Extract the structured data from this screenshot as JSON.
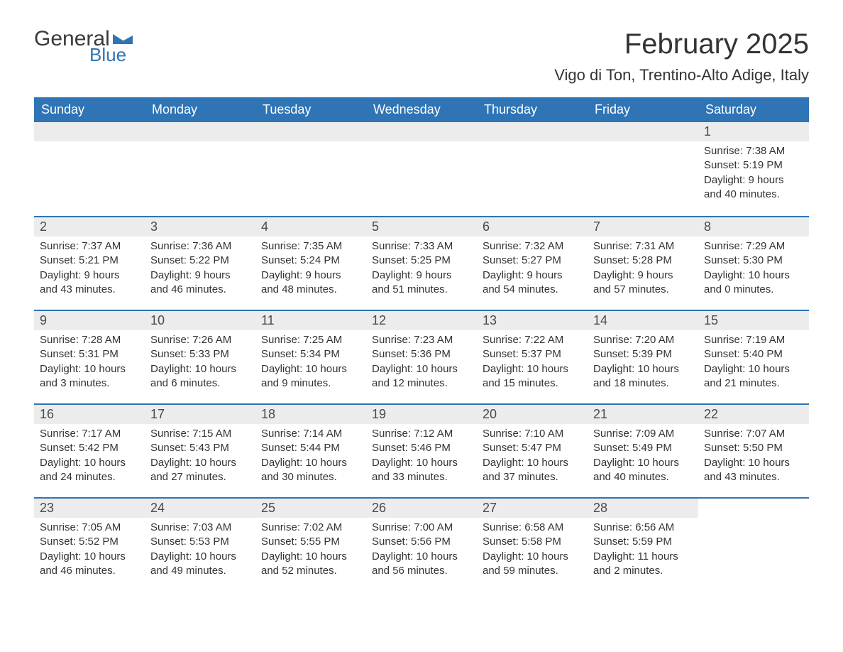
{
  "logo": {
    "general": "General",
    "blue": "Blue",
    "flag_color": "#2f74b5"
  },
  "title": "February 2025",
  "subtitle": "Vigo di Ton, Trentino-Alto Adige, Italy",
  "colors": {
    "header_bg": "#2f74b5",
    "header_text": "#ffffff",
    "daynum_bg": "#ececec",
    "text": "#333333",
    "border": "#2f74b5"
  },
  "dow": [
    "Sunday",
    "Monday",
    "Tuesday",
    "Wednesday",
    "Thursday",
    "Friday",
    "Saturday"
  ],
  "weeks": [
    [
      {
        "empty": true
      },
      {
        "empty": true
      },
      {
        "empty": true
      },
      {
        "empty": true
      },
      {
        "empty": true
      },
      {
        "empty": true
      },
      {
        "n": "1",
        "sunrise": "Sunrise: 7:38 AM",
        "sunset": "Sunset: 5:19 PM",
        "dl1": "Daylight: 9 hours",
        "dl2": "and 40 minutes."
      }
    ],
    [
      {
        "n": "2",
        "sunrise": "Sunrise: 7:37 AM",
        "sunset": "Sunset: 5:21 PM",
        "dl1": "Daylight: 9 hours",
        "dl2": "and 43 minutes."
      },
      {
        "n": "3",
        "sunrise": "Sunrise: 7:36 AM",
        "sunset": "Sunset: 5:22 PM",
        "dl1": "Daylight: 9 hours",
        "dl2": "and 46 minutes."
      },
      {
        "n": "4",
        "sunrise": "Sunrise: 7:35 AM",
        "sunset": "Sunset: 5:24 PM",
        "dl1": "Daylight: 9 hours",
        "dl2": "and 48 minutes."
      },
      {
        "n": "5",
        "sunrise": "Sunrise: 7:33 AM",
        "sunset": "Sunset: 5:25 PM",
        "dl1": "Daylight: 9 hours",
        "dl2": "and 51 minutes."
      },
      {
        "n": "6",
        "sunrise": "Sunrise: 7:32 AM",
        "sunset": "Sunset: 5:27 PM",
        "dl1": "Daylight: 9 hours",
        "dl2": "and 54 minutes."
      },
      {
        "n": "7",
        "sunrise": "Sunrise: 7:31 AM",
        "sunset": "Sunset: 5:28 PM",
        "dl1": "Daylight: 9 hours",
        "dl2": "and 57 minutes."
      },
      {
        "n": "8",
        "sunrise": "Sunrise: 7:29 AM",
        "sunset": "Sunset: 5:30 PM",
        "dl1": "Daylight: 10 hours",
        "dl2": "and 0 minutes."
      }
    ],
    [
      {
        "n": "9",
        "sunrise": "Sunrise: 7:28 AM",
        "sunset": "Sunset: 5:31 PM",
        "dl1": "Daylight: 10 hours",
        "dl2": "and 3 minutes."
      },
      {
        "n": "10",
        "sunrise": "Sunrise: 7:26 AM",
        "sunset": "Sunset: 5:33 PM",
        "dl1": "Daylight: 10 hours",
        "dl2": "and 6 minutes."
      },
      {
        "n": "11",
        "sunrise": "Sunrise: 7:25 AM",
        "sunset": "Sunset: 5:34 PM",
        "dl1": "Daylight: 10 hours",
        "dl2": "and 9 minutes."
      },
      {
        "n": "12",
        "sunrise": "Sunrise: 7:23 AM",
        "sunset": "Sunset: 5:36 PM",
        "dl1": "Daylight: 10 hours",
        "dl2": "and 12 minutes."
      },
      {
        "n": "13",
        "sunrise": "Sunrise: 7:22 AM",
        "sunset": "Sunset: 5:37 PM",
        "dl1": "Daylight: 10 hours",
        "dl2": "and 15 minutes."
      },
      {
        "n": "14",
        "sunrise": "Sunrise: 7:20 AM",
        "sunset": "Sunset: 5:39 PM",
        "dl1": "Daylight: 10 hours",
        "dl2": "and 18 minutes."
      },
      {
        "n": "15",
        "sunrise": "Sunrise: 7:19 AM",
        "sunset": "Sunset: 5:40 PM",
        "dl1": "Daylight: 10 hours",
        "dl2": "and 21 minutes."
      }
    ],
    [
      {
        "n": "16",
        "sunrise": "Sunrise: 7:17 AM",
        "sunset": "Sunset: 5:42 PM",
        "dl1": "Daylight: 10 hours",
        "dl2": "and 24 minutes."
      },
      {
        "n": "17",
        "sunrise": "Sunrise: 7:15 AM",
        "sunset": "Sunset: 5:43 PM",
        "dl1": "Daylight: 10 hours",
        "dl2": "and 27 minutes."
      },
      {
        "n": "18",
        "sunrise": "Sunrise: 7:14 AM",
        "sunset": "Sunset: 5:44 PM",
        "dl1": "Daylight: 10 hours",
        "dl2": "and 30 minutes."
      },
      {
        "n": "19",
        "sunrise": "Sunrise: 7:12 AM",
        "sunset": "Sunset: 5:46 PM",
        "dl1": "Daylight: 10 hours",
        "dl2": "and 33 minutes."
      },
      {
        "n": "20",
        "sunrise": "Sunrise: 7:10 AM",
        "sunset": "Sunset: 5:47 PM",
        "dl1": "Daylight: 10 hours",
        "dl2": "and 37 minutes."
      },
      {
        "n": "21",
        "sunrise": "Sunrise: 7:09 AM",
        "sunset": "Sunset: 5:49 PM",
        "dl1": "Daylight: 10 hours",
        "dl2": "and 40 minutes."
      },
      {
        "n": "22",
        "sunrise": "Sunrise: 7:07 AM",
        "sunset": "Sunset: 5:50 PM",
        "dl1": "Daylight: 10 hours",
        "dl2": "and 43 minutes."
      }
    ],
    [
      {
        "n": "23",
        "sunrise": "Sunrise: 7:05 AM",
        "sunset": "Sunset: 5:52 PM",
        "dl1": "Daylight: 10 hours",
        "dl2": "and 46 minutes."
      },
      {
        "n": "24",
        "sunrise": "Sunrise: 7:03 AM",
        "sunset": "Sunset: 5:53 PM",
        "dl1": "Daylight: 10 hours",
        "dl2": "and 49 minutes."
      },
      {
        "n": "25",
        "sunrise": "Sunrise: 7:02 AM",
        "sunset": "Sunset: 5:55 PM",
        "dl1": "Daylight: 10 hours",
        "dl2": "and 52 minutes."
      },
      {
        "n": "26",
        "sunrise": "Sunrise: 7:00 AM",
        "sunset": "Sunset: 5:56 PM",
        "dl1": "Daylight: 10 hours",
        "dl2": "and 56 minutes."
      },
      {
        "n": "27",
        "sunrise": "Sunrise: 6:58 AM",
        "sunset": "Sunset: 5:58 PM",
        "dl1": "Daylight: 10 hours",
        "dl2": "and 59 minutes."
      },
      {
        "n": "28",
        "sunrise": "Sunrise: 6:56 AM",
        "sunset": "Sunset: 5:59 PM",
        "dl1": "Daylight: 11 hours",
        "dl2": "and 2 minutes."
      },
      {
        "empty": true,
        "noBg": true
      }
    ]
  ]
}
